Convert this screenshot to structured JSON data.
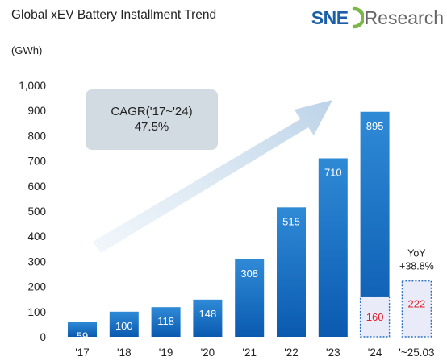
{
  "header": {
    "title": "Global xEV Battery Installment Trend",
    "unit": "(GWh)",
    "logo_brand": "SNE",
    "logo_suffix": "Research"
  },
  "colors": {
    "bar_gradient_top": "#2f8ad6",
    "bar_gradient_bottom": "#0a5ab0",
    "highlight_fill": "#e9ecf8",
    "highlight_border": "#2a6fc4",
    "highlight_text": "#e0202a",
    "arrow": "#cfe0ef",
    "callout_box": "#d2dbe2",
    "logo_blue": "#1b5fa8",
    "logo_green": "#7ab648"
  },
  "chart_data": {
    "type": "bar",
    "title": "Global xEV Battery Installment Trend",
    "ylabel": "(GWh)",
    "ylim": [
      0,
      1000
    ],
    "yticks": [
      "0",
      "100",
      "200",
      "300",
      "400",
      "500",
      "600",
      "700",
      "800",
      "900",
      "1,000"
    ],
    "categories": [
      "'17",
      "'18",
      "'19",
      "'20",
      "'21",
      "'22",
      "'23",
      "'24",
      "'~25.03"
    ],
    "values": [
      59,
      100,
      118,
      148,
      308,
      515,
      710,
      895,
      222
    ],
    "value_labels": [
      "59",
      "100",
      "118",
      "148",
      "308",
      "515",
      "710",
      "895",
      "222"
    ],
    "highlight": {
      "year_bar": "'24",
      "value": 160,
      "value_label": "160",
      "compare_label": "YoY",
      "compare_value": "+38.8%"
    },
    "annotation": {
      "title": "CAGR('17~'24)",
      "value": "47.5%"
    },
    "grid": false,
    "legend": "none"
  }
}
